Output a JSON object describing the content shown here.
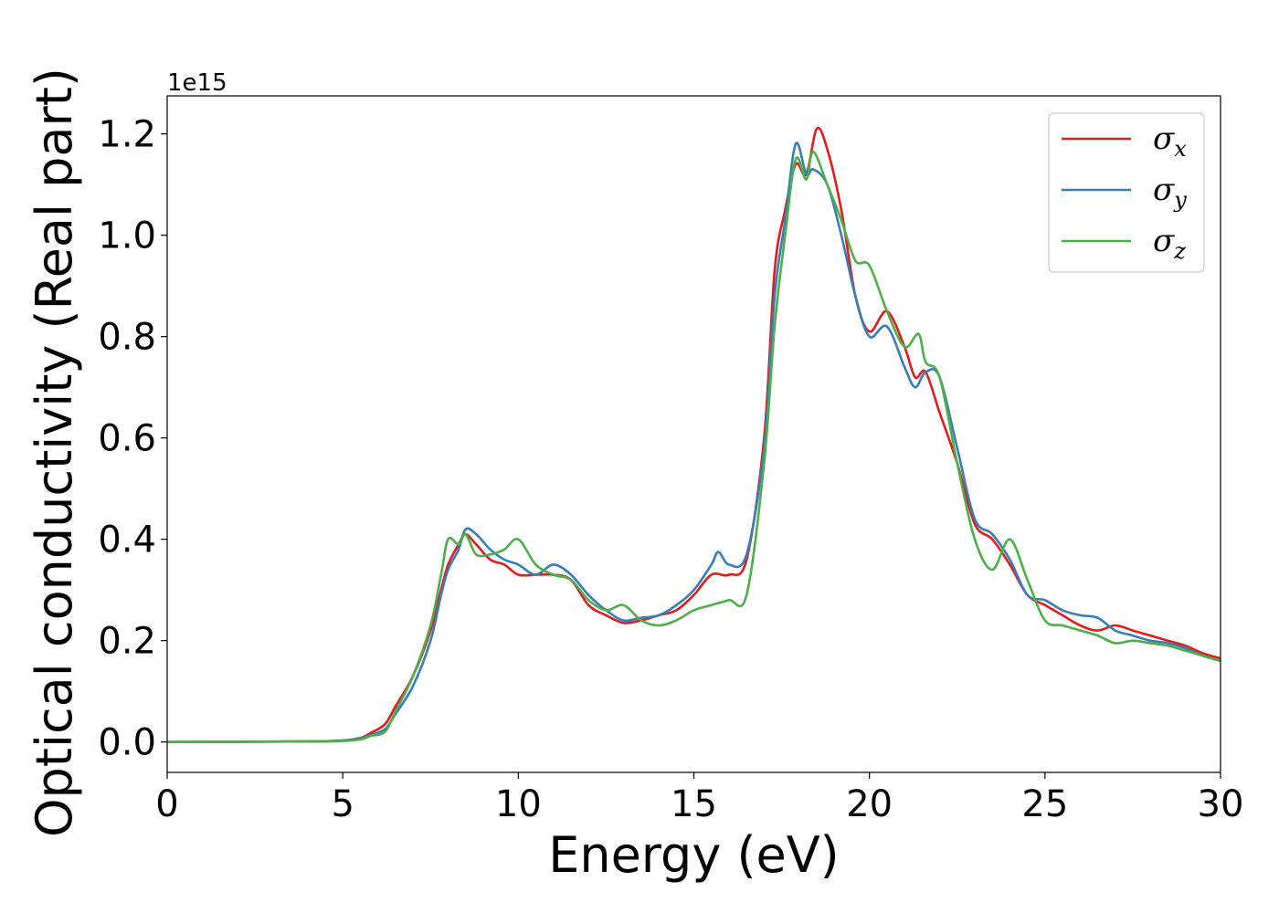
{
  "chart_data": {
    "type": "line",
    "xlabel": "Energy (eV)",
    "ylabel": "Optical conductivity (Real part)",
    "y_offset_label": "1e15",
    "xlim": [
      0,
      30
    ],
    "ylim": [
      -0.06,
      1.275
    ],
    "xticks": [
      0,
      5,
      10,
      15,
      20,
      25,
      30
    ],
    "xtick_labels": [
      "0",
      "5",
      "10",
      "15",
      "20",
      "25",
      "30"
    ],
    "yticks": [
      0.0,
      0.2,
      0.4,
      0.6,
      0.8,
      1.0,
      1.2
    ],
    "ytick_labels": [
      "0.0",
      "0.2",
      "0.4",
      "0.6",
      "0.8",
      "1.0",
      "1.2"
    ],
    "grid": false,
    "legend_position": "top-right",
    "series": [
      {
        "name": "σx",
        "sym": "σ",
        "sub": "x",
        "color": "#e41a1c",
        "points": [
          [
            0,
            0
          ],
          [
            4,
            0.001
          ],
          [
            5,
            0.003
          ],
          [
            5.5,
            0.008
          ],
          [
            5.8,
            0.018
          ],
          [
            6.2,
            0.035
          ],
          [
            6.5,
            0.07
          ],
          [
            7,
            0.13
          ],
          [
            7.5,
            0.22
          ],
          [
            7.8,
            0.3
          ],
          [
            8,
            0.35
          ],
          [
            8.3,
            0.39
          ],
          [
            8.5,
            0.41
          ],
          [
            8.8,
            0.39
          ],
          [
            9.2,
            0.36
          ],
          [
            9.6,
            0.35
          ],
          [
            10,
            0.33
          ],
          [
            10.5,
            0.33
          ],
          [
            11,
            0.33
          ],
          [
            11.5,
            0.32
          ],
          [
            12,
            0.27
          ],
          [
            12.5,
            0.25
          ],
          [
            13,
            0.235
          ],
          [
            13.5,
            0.24
          ],
          [
            14,
            0.25
          ],
          [
            14.5,
            0.26
          ],
          [
            15,
            0.29
          ],
          [
            15.5,
            0.33
          ],
          [
            16,
            0.33
          ],
          [
            16.5,
            0.36
          ],
          [
            17,
            0.6
          ],
          [
            17.3,
            0.93
          ],
          [
            17.6,
            1.05
          ],
          [
            17.9,
            1.14
          ],
          [
            18.2,
            1.12
          ],
          [
            18.5,
            1.21
          ],
          [
            18.8,
            1.17
          ],
          [
            19.2,
            1.05
          ],
          [
            19.6,
            0.88
          ],
          [
            20,
            0.81
          ],
          [
            20.5,
            0.85
          ],
          [
            21,
            0.78
          ],
          [
            21.3,
            0.72
          ],
          [
            21.6,
            0.73
          ],
          [
            22,
            0.65
          ],
          [
            22.5,
            0.55
          ],
          [
            23,
            0.43
          ],
          [
            23.5,
            0.4
          ],
          [
            24,
            0.35
          ],
          [
            24.5,
            0.29
          ],
          [
            25,
            0.27
          ],
          [
            25.5,
            0.25
          ],
          [
            26,
            0.23
          ],
          [
            26.5,
            0.22
          ],
          [
            27,
            0.23
          ],
          [
            27.5,
            0.22
          ],
          [
            28,
            0.21
          ],
          [
            28.5,
            0.2
          ],
          [
            29,
            0.19
          ],
          [
            29.5,
            0.175
          ],
          [
            30,
            0.165
          ]
        ]
      },
      {
        "name": "σy",
        "sym": "σ",
        "sub": "y",
        "color": "#377eb8",
        "points": [
          [
            0,
            0
          ],
          [
            4,
            0.001
          ],
          [
            5,
            0.003
          ],
          [
            5.5,
            0.007
          ],
          [
            5.8,
            0.014
          ],
          [
            6.2,
            0.025
          ],
          [
            6.5,
            0.055
          ],
          [
            7,
            0.11
          ],
          [
            7.5,
            0.2
          ],
          [
            7.8,
            0.29
          ],
          [
            8,
            0.34
          ],
          [
            8.3,
            0.38
          ],
          [
            8.5,
            0.42
          ],
          [
            8.8,
            0.41
          ],
          [
            9.2,
            0.38
          ],
          [
            9.6,
            0.36
          ],
          [
            10,
            0.35
          ],
          [
            10.5,
            0.33
          ],
          [
            11,
            0.35
          ],
          [
            11.5,
            0.33
          ],
          [
            12,
            0.29
          ],
          [
            12.5,
            0.26
          ],
          [
            13,
            0.24
          ],
          [
            13.5,
            0.245
          ],
          [
            14,
            0.25
          ],
          [
            14.5,
            0.27
          ],
          [
            15,
            0.3
          ],
          [
            15.5,
            0.35
          ],
          [
            15.7,
            0.375
          ],
          [
            16,
            0.35
          ],
          [
            16.5,
            0.37
          ],
          [
            17,
            0.58
          ],
          [
            17.3,
            0.88
          ],
          [
            17.6,
            1.03
          ],
          [
            17.9,
            1.18
          ],
          [
            18.2,
            1.12
          ],
          [
            18.4,
            1.13
          ],
          [
            18.8,
            1.1
          ],
          [
            19.2,
            1.0
          ],
          [
            19.6,
            0.88
          ],
          [
            20,
            0.8
          ],
          [
            20.5,
            0.82
          ],
          [
            21,
            0.74
          ],
          [
            21.3,
            0.7
          ],
          [
            21.6,
            0.73
          ],
          [
            22,
            0.72
          ],
          [
            22.5,
            0.58
          ],
          [
            23,
            0.44
          ],
          [
            23.5,
            0.41
          ],
          [
            24,
            0.36
          ],
          [
            24.5,
            0.29
          ],
          [
            25,
            0.28
          ],
          [
            25.5,
            0.26
          ],
          [
            26,
            0.25
          ],
          [
            26.5,
            0.245
          ],
          [
            27,
            0.22
          ],
          [
            27.5,
            0.21
          ],
          [
            28,
            0.2
          ],
          [
            28.5,
            0.195
          ],
          [
            29,
            0.185
          ],
          [
            29.5,
            0.17
          ],
          [
            30,
            0.16
          ]
        ]
      },
      {
        "name": "σz",
        "sym": "σ",
        "sub": "z",
        "color": "#4daf4a",
        "points": [
          [
            0,
            0
          ],
          [
            4,
            0.001
          ],
          [
            5,
            0.002
          ],
          [
            5.5,
            0.005
          ],
          [
            5.8,
            0.012
          ],
          [
            6.2,
            0.02
          ],
          [
            6.5,
            0.06
          ],
          [
            7,
            0.13
          ],
          [
            7.5,
            0.23
          ],
          [
            7.8,
            0.33
          ],
          [
            8,
            0.4
          ],
          [
            8.3,
            0.39
          ],
          [
            8.5,
            0.41
          ],
          [
            8.8,
            0.37
          ],
          [
            9.2,
            0.37
          ],
          [
            9.6,
            0.38
          ],
          [
            10,
            0.4
          ],
          [
            10.5,
            0.35
          ],
          [
            11,
            0.33
          ],
          [
            11.5,
            0.32
          ],
          [
            12,
            0.28
          ],
          [
            12.5,
            0.26
          ],
          [
            13,
            0.27
          ],
          [
            13.5,
            0.24
          ],
          [
            14,
            0.23
          ],
          [
            14.5,
            0.24
          ],
          [
            15,
            0.26
          ],
          [
            15.5,
            0.27
          ],
          [
            16,
            0.28
          ],
          [
            16.5,
            0.29
          ],
          [
            17,
            0.55
          ],
          [
            17.3,
            0.82
          ],
          [
            17.6,
            1.0
          ],
          [
            17.9,
            1.15
          ],
          [
            18.2,
            1.11
          ],
          [
            18.4,
            1.165
          ],
          [
            18.8,
            1.1
          ],
          [
            19.2,
            1.03
          ],
          [
            19.6,
            0.95
          ],
          [
            20,
            0.94
          ],
          [
            20.5,
            0.85
          ],
          [
            21,
            0.78
          ],
          [
            21.4,
            0.805
          ],
          [
            21.6,
            0.75
          ],
          [
            22,
            0.72
          ],
          [
            22.5,
            0.55
          ],
          [
            23,
            0.4
          ],
          [
            23.5,
            0.34
          ],
          [
            24,
            0.4
          ],
          [
            24.5,
            0.32
          ],
          [
            25,
            0.24
          ],
          [
            25.5,
            0.23
          ],
          [
            26,
            0.22
          ],
          [
            26.5,
            0.21
          ],
          [
            27,
            0.195
          ],
          [
            27.5,
            0.2
          ],
          [
            28,
            0.195
          ],
          [
            28.5,
            0.19
          ],
          [
            29,
            0.18
          ],
          [
            29.5,
            0.17
          ],
          [
            30,
            0.16
          ]
        ]
      }
    ]
  }
}
